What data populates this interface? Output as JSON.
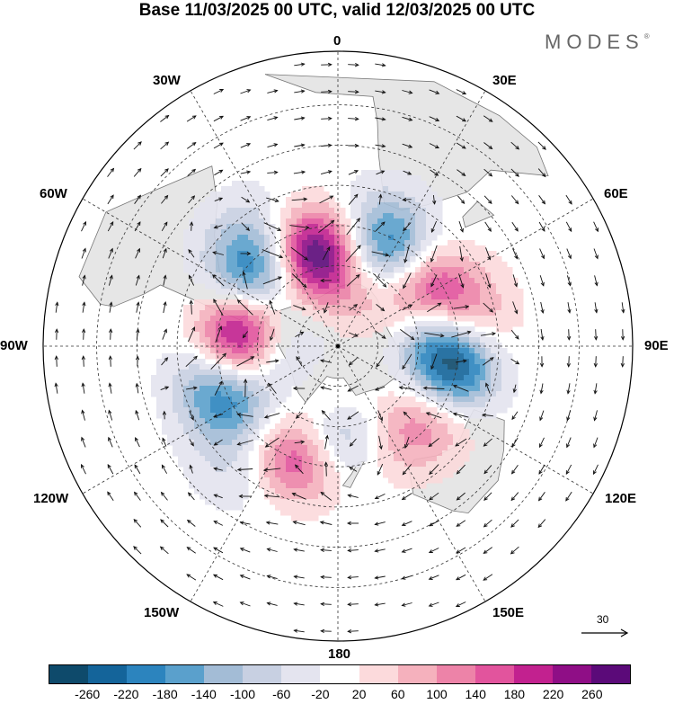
{
  "title": "Base 11/03/2025 00 UTC, valid 12/03/2025 00 UTC",
  "brand": "MODES",
  "brand_mark": "®",
  "lon_labels": {
    "n0": "0",
    "n30e": "30E",
    "n60e": "60E",
    "n90e": "90E",
    "n120e": "120E",
    "n150e": "150E",
    "n180": "180",
    "n150w": "150W",
    "n120w": "120W",
    "n90w": "90W",
    "n60w": "60W",
    "n30w": "30W"
  },
  "reference_vector_label": "30",
  "colorbar": {
    "colors": [
      "#0e4a6b",
      "#14649a",
      "#2c84be",
      "#5aa0cc",
      "#a3bcd6",
      "#c8d0e2",
      "#e4e4ef",
      "#ffffff",
      "#fcdadc",
      "#f5b1bd",
      "#ed83a8",
      "#e2549d",
      "#c2218f",
      "#8f0e86",
      "#5b0a79"
    ],
    "ticks": [
      "-260",
      "-220",
      "-180",
      "-140",
      "-100",
      "-60",
      "-20",
      "20",
      "60",
      "100",
      "140",
      "180",
      "220",
      "260"
    ]
  },
  "map_colors": {
    "land": "#e6e6e6",
    "coast": "#777777",
    "grid": "#333333",
    "contour": "#222222",
    "vector": "#111111"
  },
  "anomalies": [
    {
      "lon": -15,
      "lat": -52,
      "value": 240
    },
    {
      "lon": -8,
      "lat": -62,
      "value": 120
    },
    {
      "lon": 28,
      "lat": -50,
      "value": -200
    },
    {
      "lon": 20,
      "lat": -38,
      "value": -60
    },
    {
      "lon": 60,
      "lat": -50,
      "value": 230
    },
    {
      "lon": 78,
      "lat": -38,
      "value": 100
    },
    {
      "lon": 80,
      "lat": -55,
      "value": -160
    },
    {
      "lon": 102,
      "lat": -45,
      "value": -280
    },
    {
      "lon": 125,
      "lat": -45,
      "value": 120
    },
    {
      "lon": 150,
      "lat": -50,
      "value": 80
    },
    {
      "lon": 178,
      "lat": -55,
      "value": -150
    },
    {
      "lon": -160,
      "lat": -45,
      "value": 200
    },
    {
      "lon": -140,
      "lat": -30,
      "value": -60
    },
    {
      "lon": -118,
      "lat": -45,
      "value": -150
    },
    {
      "lon": -105,
      "lat": -40,
      "value": -100
    },
    {
      "lon": -85,
      "lat": -52,
      "value": 270
    },
    {
      "lon": -60,
      "lat": -55,
      "value": 80
    },
    {
      "lon": -50,
      "lat": -50,
      "value": -260
    },
    {
      "lon": -40,
      "lat": -35,
      "value": -80
    },
    {
      "lon": -95,
      "lat": -70,
      "value": -80
    },
    {
      "lon": 45,
      "lat": -68,
      "value": 60
    },
    {
      "lon": -170,
      "lat": -70,
      "value": 40
    }
  ]
}
